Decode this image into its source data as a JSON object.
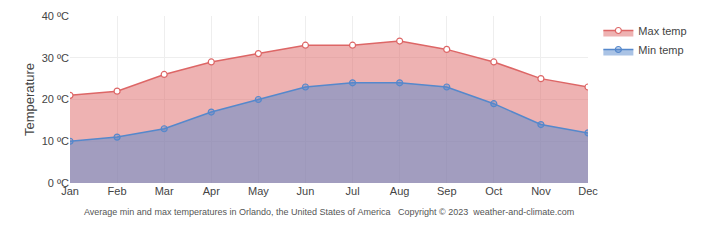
{
  "chart_data": {
    "type": "area",
    "categories": [
      "Jan",
      "Feb",
      "Mar",
      "Apr",
      "May",
      "Jun",
      "Jul",
      "Aug",
      "Sep",
      "Oct",
      "Nov",
      "Dec"
    ],
    "series": [
      {
        "name": "Max temp",
        "color": "#dd6666",
        "marker": "circle_open",
        "values": [
          21,
          22,
          26,
          29,
          31,
          33,
          33,
          34,
          32,
          29,
          25,
          23
        ]
      },
      {
        "name": "Min temp",
        "color": "#5588cc",
        "marker": "circle",
        "values": [
          10,
          11,
          13,
          17,
          20,
          23,
          24,
          24,
          23,
          19,
          14,
          12
        ]
      }
    ],
    "y_label": "Temperature",
    "ylim": [
      0,
      40
    ],
    "yticks": [
      {
        "value": 0,
        "label": "0 ºC"
      },
      {
        "value": 10,
        "label": "10 ºC"
      },
      {
        "value": 20,
        "label": "20 ºC"
      },
      {
        "value": 30,
        "label": "30 ºC"
      },
      {
        "value": 40,
        "label": "40 ºC"
      }
    ],
    "annotations": [
      "Average min and max temperatures in Orlando, the United States of America   Copyright © 2023  weather-and-climate.com"
    ],
    "grid": true,
    "legend": "right"
  }
}
